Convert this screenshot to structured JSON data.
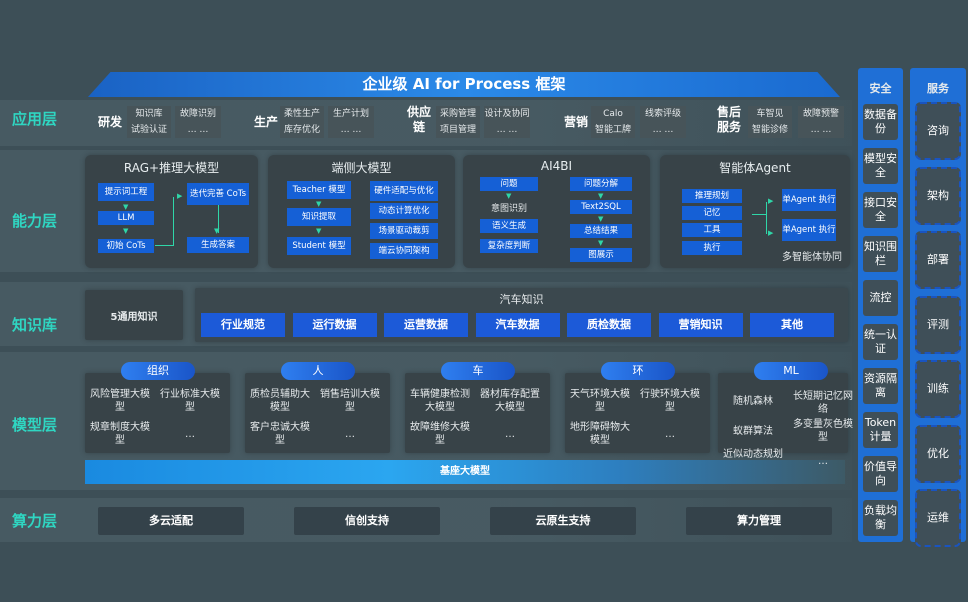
{
  "title": "企业级 AI for Process 框架",
  "layers": {
    "app": "应用层",
    "capability": "能力层",
    "knowledge": "知识库",
    "model": "模型层",
    "compute": "算力层"
  },
  "app_groups": [
    {
      "name": "研发",
      "items": [
        "知识库",
        "试验认证",
        "故障识别",
        "… …"
      ]
    },
    {
      "name": "生产",
      "items": [
        "柔性生产",
        "库存优化",
        "生产计划",
        "… …"
      ]
    },
    {
      "name": "供应链",
      "items": [
        "采购管理",
        "项目管理",
        "设计及协同",
        "… …"
      ]
    },
    {
      "name": "营销",
      "items": [
        "Calo",
        "智能工牌",
        "线索评级",
        "… …"
      ]
    },
    {
      "name": "售后服务",
      "items": [
        "车智见",
        "智能诊修",
        "故障预警",
        "… …"
      ]
    }
  ],
  "capability": {
    "rag": {
      "title": "RAG+推理大模型",
      "items": [
        "提示词工程",
        "LLM",
        "初始 CoTs",
        "迭代完善 CoTs",
        "生成答案"
      ]
    },
    "edge": {
      "title": "端侧大模型",
      "items": [
        "Teacher 模型",
        "知识提取",
        "Student 模型",
        "硬件适配与优化",
        "动态计算优化",
        "场景驱动裁剪",
        "端云协同架构"
      ]
    },
    "ai4bi": {
      "title": "AI4BI",
      "items": [
        "问题",
        "意图识别",
        "语义生成",
        "复杂度判断",
        "问题分解",
        "Text2SQL",
        "总结结果",
        "图展示"
      ]
    },
    "agent": {
      "title": "智能体Agent",
      "items": [
        "推理规划",
        "记忆",
        "工具",
        "执行",
        "单Agent 执行",
        "单Agent 执行"
      ],
      "footer": "多智能体协同"
    }
  },
  "knowledge": {
    "general": "5通用知识",
    "auto_title": "汽车知识",
    "auto_items": [
      "行业规范",
      "运行数据",
      "运营数据",
      "汽车数据",
      "质检数据",
      "营销知识",
      "其他"
    ]
  },
  "models": [
    {
      "name": "组织",
      "items": [
        "风险管理大模型",
        "行业标准大模型",
        "规章制度大模型",
        "…"
      ]
    },
    {
      "name": "人",
      "items": [
        "质检员辅助大模型",
        "销售培训大模型",
        "客户忠诚大模型",
        "…"
      ]
    },
    {
      "name": "车",
      "items": [
        "车辆健康检测大模型",
        "器材库存配置大模型",
        "故障维修大模型",
        "…"
      ]
    },
    {
      "name": "环",
      "items": [
        "天气环境大模型",
        "行驶环境大模型",
        "地形障碍物大模型",
        "…"
      ]
    },
    {
      "name": "ML",
      "items": [
        "随机森林",
        "长短期记忆网络",
        "蚁群算法",
        "多变量灰色模型",
        "近似动态规划",
        "…"
      ]
    }
  ],
  "base_model": "基座大模型",
  "compute": [
    "多云适配",
    "信创支持",
    "云原生支持",
    "算力管理"
  ],
  "security": {
    "title": "安全",
    "items": [
      "数据备份",
      "模型安全",
      "接口安全",
      "知识围栏",
      "流控",
      "统一认证",
      "资源隔离",
      "Token计量",
      "价值导向",
      "负载均衡"
    ]
  },
  "service": {
    "title": "服务",
    "items": [
      "咨询",
      "架构",
      "部署",
      "评测",
      "训练",
      "优化",
      "运维"
    ]
  }
}
